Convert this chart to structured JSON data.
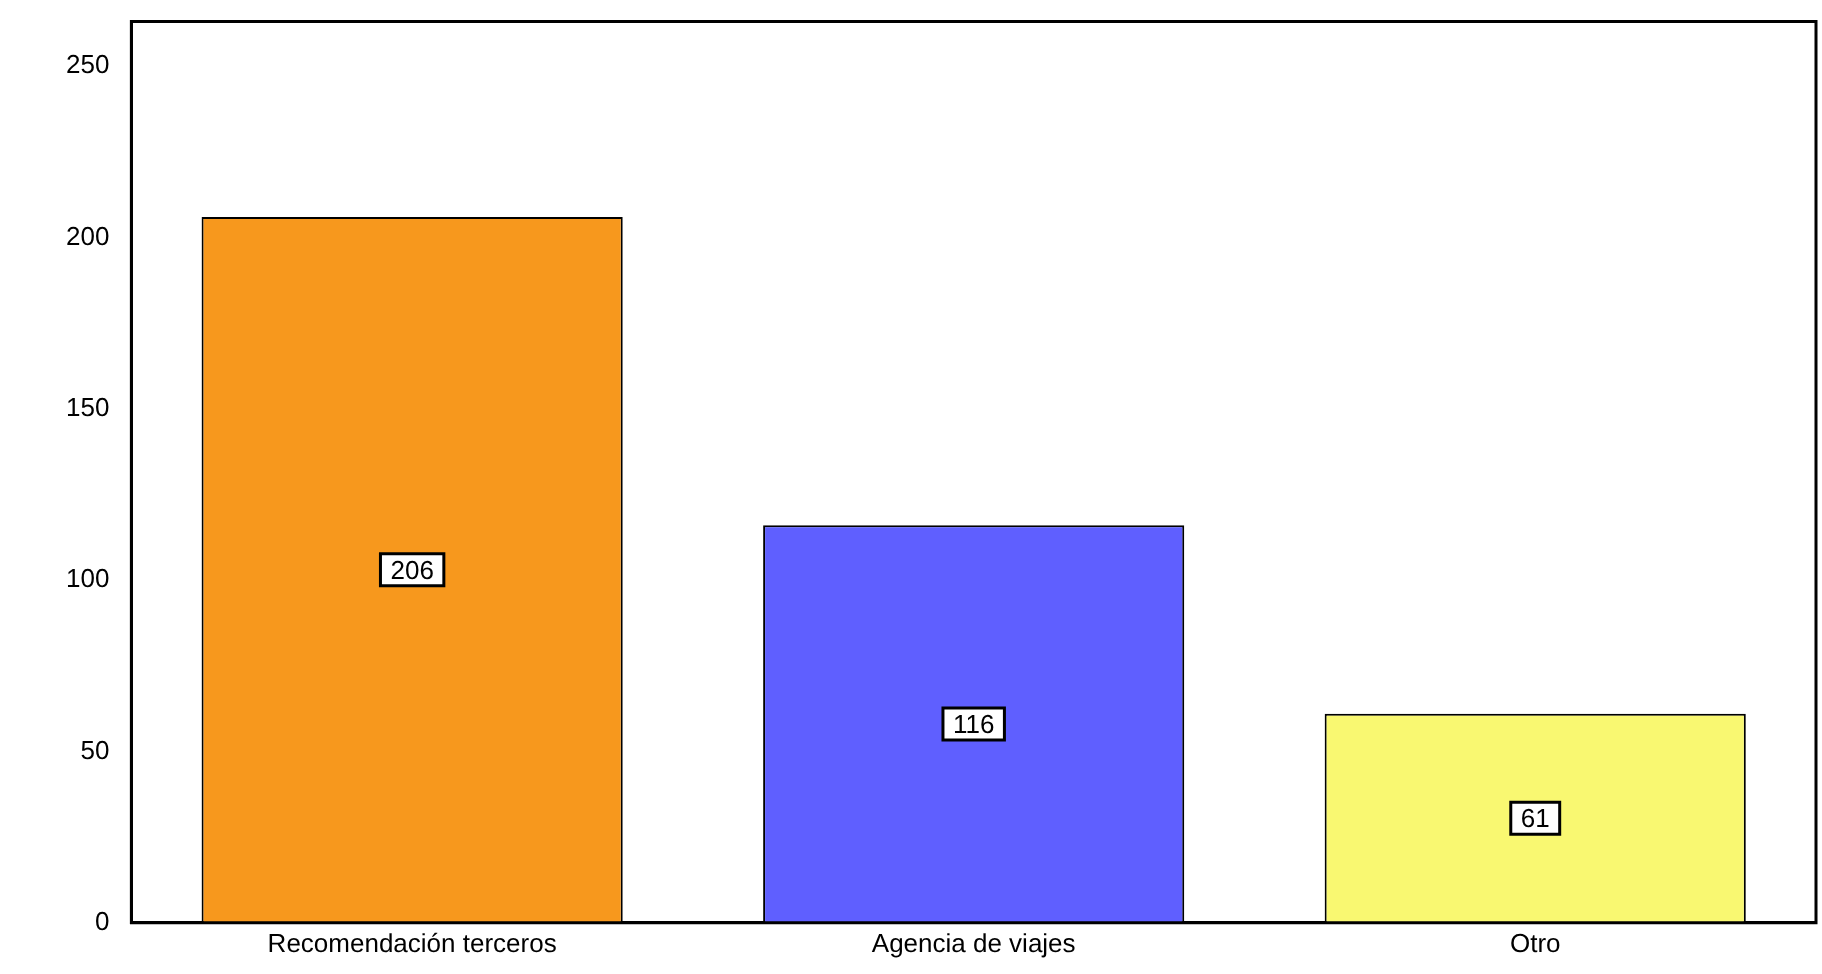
{
  "chart_data": {
    "type": "bar",
    "categories": [
      "Recomendación terceros",
      "Agencia de viajes",
      "Otro"
    ],
    "values": [
      206,
      116,
      61
    ],
    "colors": [
      "#f7981d",
      "#5f5fff",
      "#f9f871"
    ],
    "ylim": [
      0,
      263
    ],
    "yticks": [
      0,
      50,
      100,
      150,
      200,
      250
    ],
    "grid": false,
    "legend": false,
    "data_labels": true
  }
}
